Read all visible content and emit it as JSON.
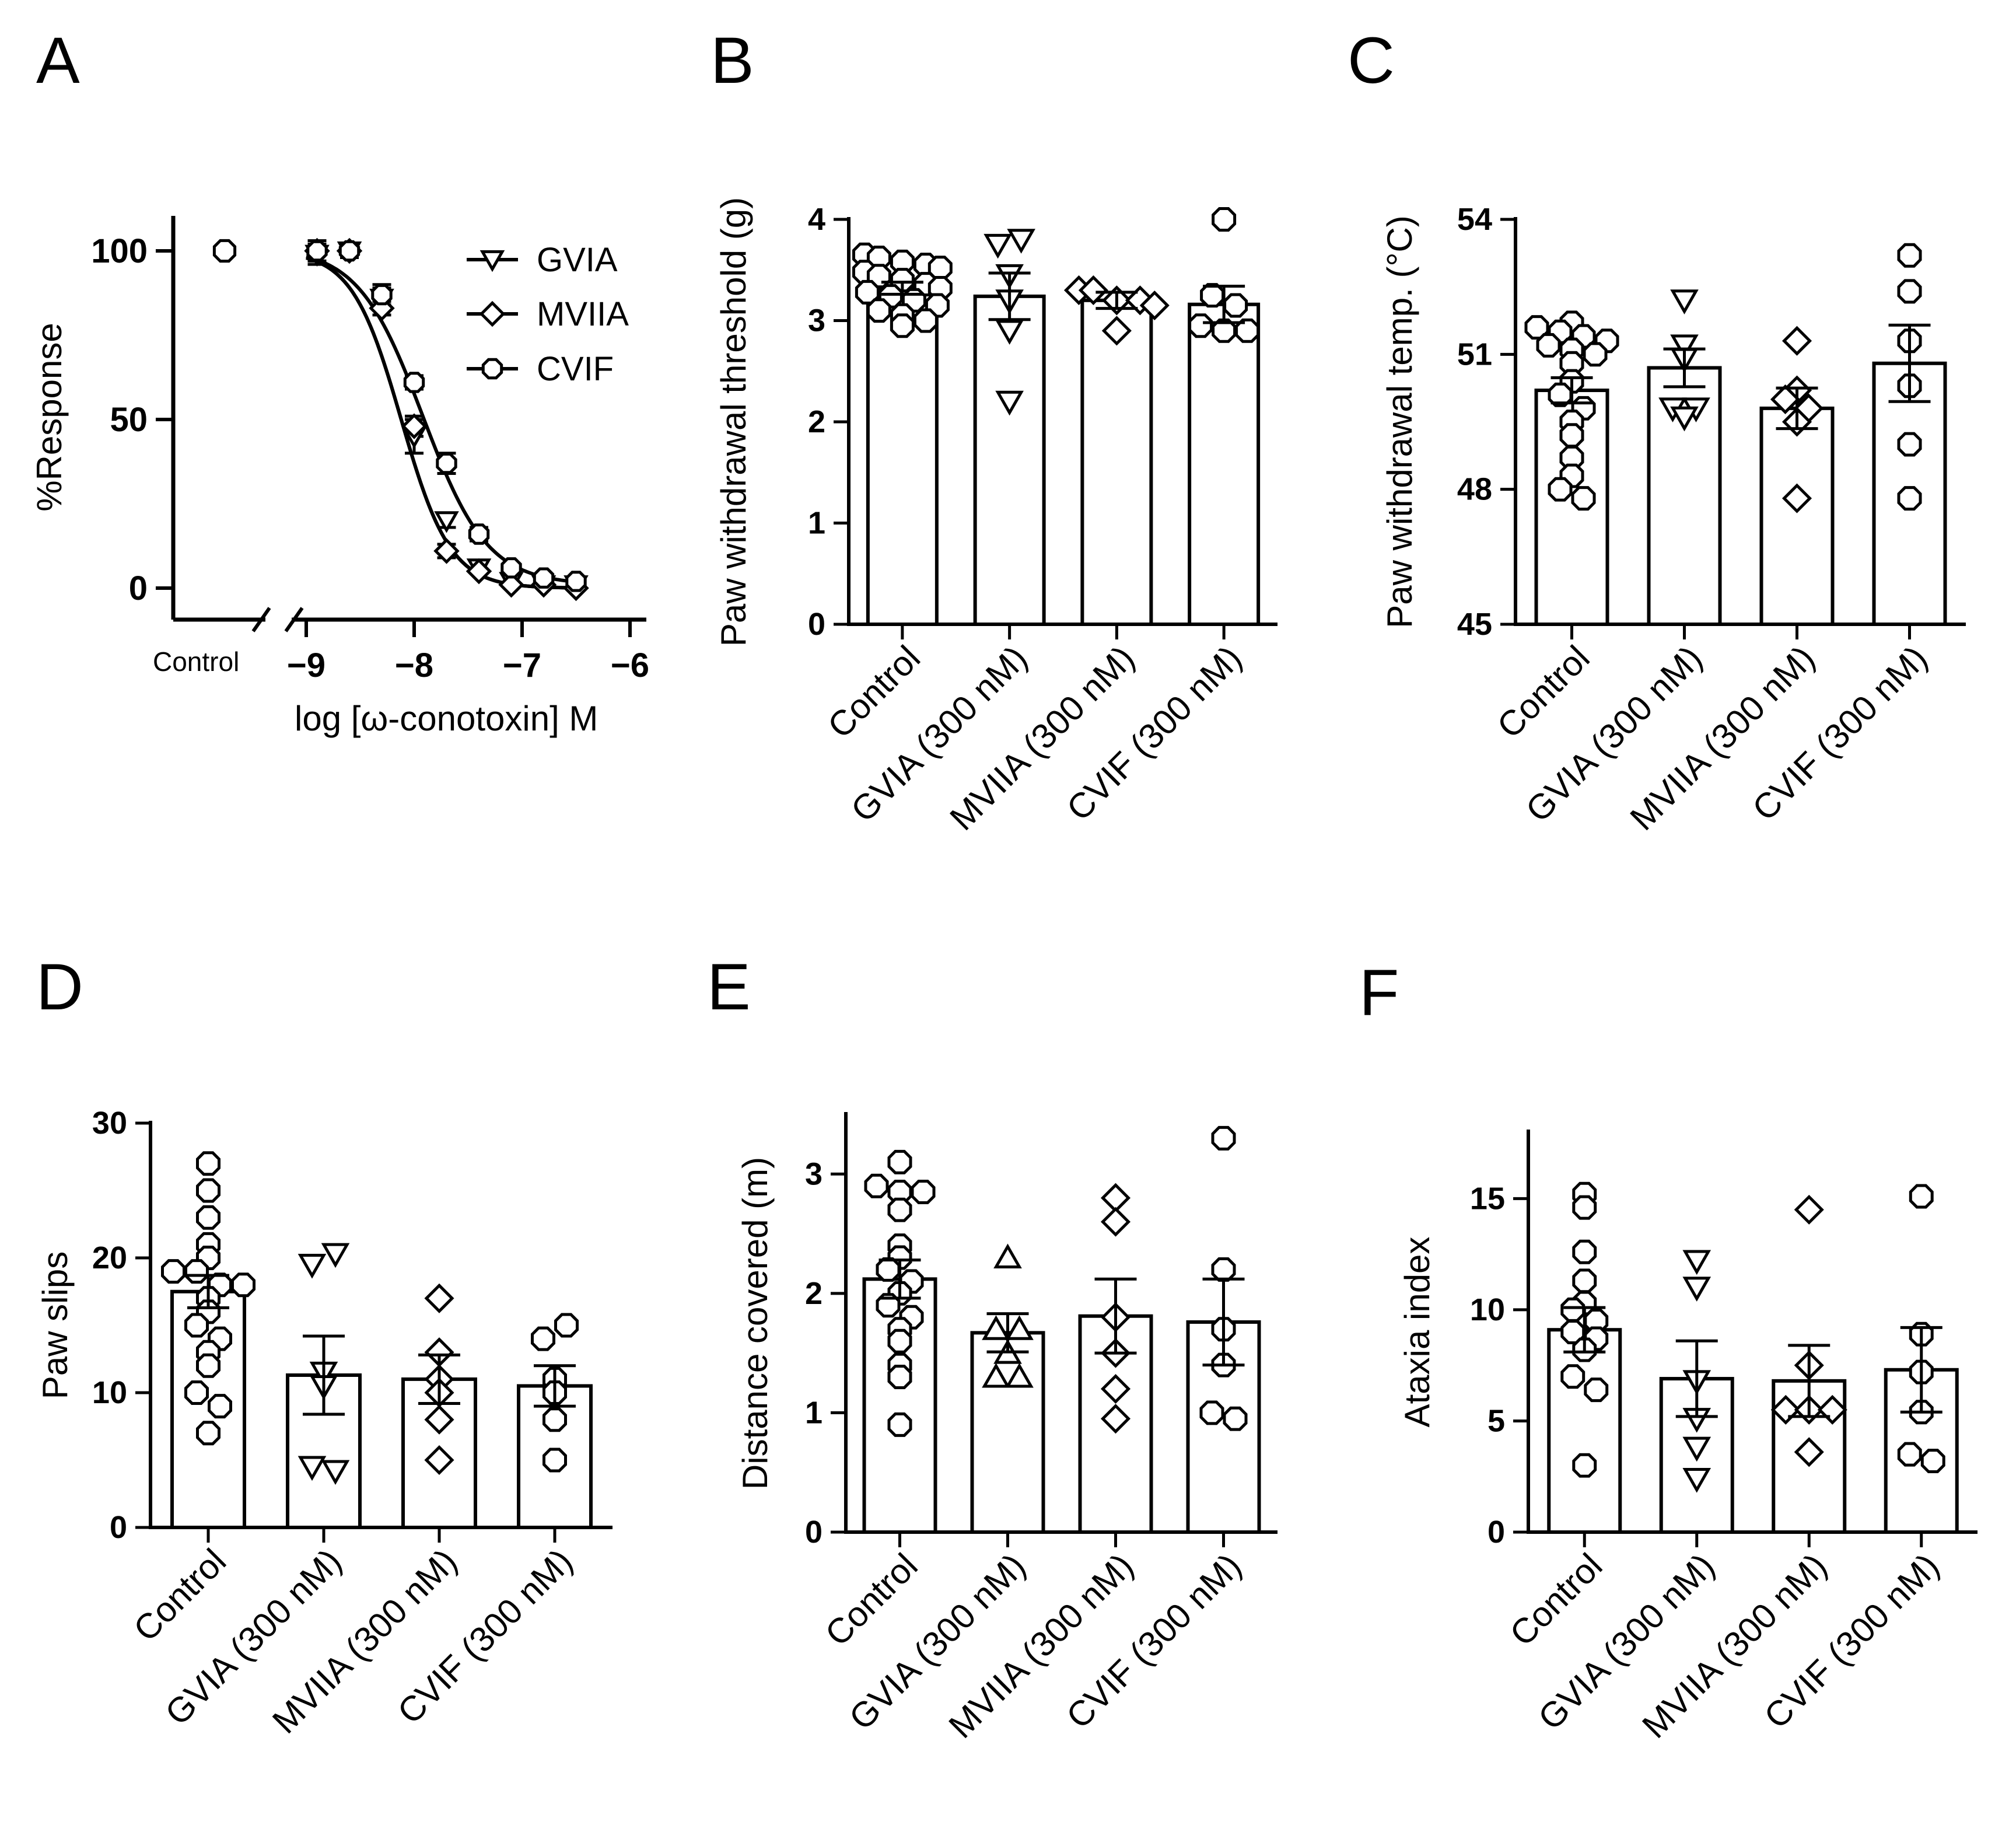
{
  "chart_data": [
    {
      "panel": "A",
      "type": "line",
      "xlabel": "log [ω-conotoxin] M",
      "ylabel": "%Response",
      "xlim": [
        -9.25,
        -6
      ],
      "ylim": [
        0,
        110
      ],
      "xticks": [
        -9,
        -8,
        -7,
        -6
      ],
      "xtick_labels": [
        "−9",
        "−8",
        "−7",
        "−6"
      ],
      "yticks": [
        0,
        50,
        100
      ],
      "control_label": "Control",
      "control_point": 100,
      "series": [
        {
          "name": "GVIA",
          "marker": "triangle-down",
          "x": [
            -8.9,
            -8.6,
            -8.3,
            -8.0,
            -7.7,
            -7.4,
            -7.1,
            -6.8,
            -6.5
          ],
          "y": [
            99,
            100,
            86,
            45,
            20,
            6,
            2,
            1,
            1
          ],
          "err": [
            3,
            2,
            3,
            5,
            2,
            1,
            1,
            1,
            1
          ],
          "fit": {
            "top": 100,
            "bottom": 0,
            "logIC50": -8.12,
            "hill": 1.9
          }
        },
        {
          "name": "MVIIA",
          "marker": "diamond",
          "x": [
            -8.9,
            -8.6,
            -8.3,
            -8.0,
            -7.7,
            -7.4,
            -7.1,
            -6.8,
            -6.5
          ],
          "y": [
            100,
            100,
            83,
            48,
            11,
            5,
            1,
            1,
            0
          ],
          "err": [
            3,
            2,
            2,
            3,
            2,
            1,
            1,
            1,
            1
          ],
          "fit": {
            "top": 100,
            "bottom": 0,
            "logIC50": -8.12,
            "hill": 1.9
          }
        },
        {
          "name": "CVIF",
          "marker": "circle",
          "x": [
            -8.9,
            -8.6,
            -8.3,
            -8.0,
            -7.7,
            -7.4,
            -7.1,
            -6.8,
            -6.5
          ],
          "y": [
            100,
            100,
            87,
            61,
            37,
            16,
            6,
            3,
            2
          ],
          "err": [
            3,
            2,
            3,
            2,
            3,
            2,
            1,
            1,
            1
          ],
          "fit": {
            "top": 101,
            "bottom": 1,
            "logIC50": -7.92,
            "hill": 1.45
          }
        }
      ]
    },
    {
      "panel": "B",
      "type": "bar",
      "ylabel": "Paw withdrawal threshold (g)",
      "ylim": [
        0,
        4
      ],
      "yticks": [
        0,
        1,
        2,
        3,
        4
      ],
      "categories": [
        "Control",
        "GVIA (300 nM)",
        "MVIIA (300 nM)",
        "CVIF (300 nM)"
      ],
      "markers": [
        "circle",
        "triangle-down",
        "diamond",
        "circle"
      ],
      "values": [
        3.32,
        3.24,
        3.2,
        3.16
      ],
      "sem": [
        0.06,
        0.23,
        0.08,
        0.18
      ],
      "points": [
        [
          3.65,
          3.62,
          3.58,
          3.55,
          3.52,
          3.48,
          3.44,
          3.4,
          3.36,
          3.32,
          3.28,
          3.24,
          3.2,
          3.15,
          3.1,
          3.05,
          3.0,
          2.95
        ],
        [
          3.75,
          3.8,
          3.45,
          3.2,
          2.9,
          2.2
        ],
        [
          3.3,
          3.3,
          3.2,
          3.2,
          3.15,
          2.9
        ],
        [
          4.0,
          3.25,
          3.15,
          2.95,
          2.9,
          2.9
        ]
      ]
    },
    {
      "panel": "C",
      "type": "bar",
      "ylabel": "Paw withdrawal temp. (°C)",
      "ylim": [
        45,
        54
      ],
      "yticks": [
        45,
        48,
        51,
        54
      ],
      "categories": [
        "Control",
        "GVIA (300 nM)",
        "MVIIA (300 nM)",
        "CVIF (300 nM)"
      ],
      "markers": [
        "circle",
        "triangle-down",
        "diamond",
        "circle"
      ],
      "values": [
        50.2,
        50.7,
        49.8,
        50.8
      ],
      "sem": [
        0.28,
        0.42,
        0.45,
        0.85
      ],
      "points": [
        [
          51.7,
          51.6,
          51.5,
          51.4,
          51.3,
          51.2,
          51.1,
          51.0,
          50.8,
          50.4,
          50.1,
          49.8,
          49.5,
          49.2,
          48.7,
          48.3,
          48.0,
          47.8
        ],
        [
          52.2,
          51.2,
          50.9,
          49.8,
          49.8,
          49.6
        ],
        [
          51.3,
          50.2,
          50.0,
          49.8,
          49.5,
          47.8
        ],
        [
          53.2,
          52.4,
          51.3,
          50.3,
          49.0,
          47.8
        ]
      ]
    },
    {
      "panel": "D",
      "type": "bar",
      "ylabel": "Paw slips",
      "ylim": [
        0,
        30
      ],
      "yticks": [
        0,
        10,
        20,
        30
      ],
      "categories": [
        "Control",
        "GVIA (300 nM)",
        "MVIIA (300 nM)",
        "CVIF (300 nM)"
      ],
      "markers": [
        "circle",
        "triangle-down",
        "diamond",
        "circle"
      ],
      "values": [
        17.5,
        11.3,
        11.0,
        10.5
      ],
      "sem": [
        1.2,
        2.9,
        1.8,
        1.5
      ],
      "points": [
        [
          27,
          25,
          23,
          21,
          20,
          19,
          19,
          18,
          18,
          17,
          16,
          15,
          14,
          13,
          12,
          10,
          9,
          7
        ],
        [
          19.5,
          20.3,
          11.5,
          10.5,
          4.5,
          4.2
        ],
        [
          17,
          13,
          11,
          10,
          8,
          5
        ],
        [
          14,
          15,
          11,
          10,
          8,
          5
        ]
      ]
    },
    {
      "panel": "E",
      "type": "bar",
      "ylabel": "Distance covered (m)",
      "ylim": [
        0,
        3.5
      ],
      "yticks": [
        0,
        1,
        2,
        3
      ],
      "categories": [
        "Control",
        "GVIA (300 nM)",
        "MVIIA (300 nM)",
        "CVIF (300 nM)"
      ],
      "markers": [
        "circle",
        "triangle-up",
        "diamond",
        "circle"
      ],
      "values": [
        2.12,
        1.67,
        1.81,
        1.76
      ],
      "sem": [
        0.16,
        0.16,
        0.31,
        0.36
      ],
      "points": [
        [
          3.1,
          2.9,
          2.85,
          2.85,
          2.7,
          2.4,
          2.3,
          2.2,
          2.1,
          2.0,
          1.9,
          1.8,
          1.7,
          1.6,
          1.4,
          1.3,
          0.9
        ],
        [
          2.3,
          1.7,
          1.7,
          1.5,
          1.3,
          1.3
        ],
        [
          2.8,
          2.6,
          1.8,
          1.5,
          1.2,
          0.95
        ],
        [
          3.3,
          2.2,
          1.7,
          1.4,
          1.0,
          0.95
        ]
      ]
    },
    {
      "panel": "F",
      "type": "bar",
      "ylabel": "Ataxia index",
      "ylim": [
        0,
        18
      ],
      "yticks": [
        0,
        5,
        10,
        15
      ],
      "categories": [
        "Control",
        "GVIA (300 nM)",
        "MVIIA (300 nM)",
        "CVIF (300 nM)"
      ],
      "markers": [
        "circle",
        "triangle-down",
        "diamond",
        "circle"
      ],
      "values": [
        9.1,
        6.9,
        6.8,
        7.3
      ],
      "sem": [
        1.0,
        1.7,
        1.6,
        1.9
      ],
      "points": [
        [
          15.2,
          14.6,
          12.6,
          11.3,
          10.3,
          10.0,
          9.5,
          9.0,
          8.7,
          8.2,
          7.0,
          6.4,
          3.0
        ],
        [
          12.2,
          11.0,
          6.8,
          5.1,
          3.8,
          2.4
        ],
        [
          14.5,
          7.5,
          5.5,
          5.5,
          5.5,
          3.6
        ],
        [
          15.1,
          8.9,
          7.2,
          5.4,
          3.5,
          3.2
        ]
      ]
    }
  ]
}
